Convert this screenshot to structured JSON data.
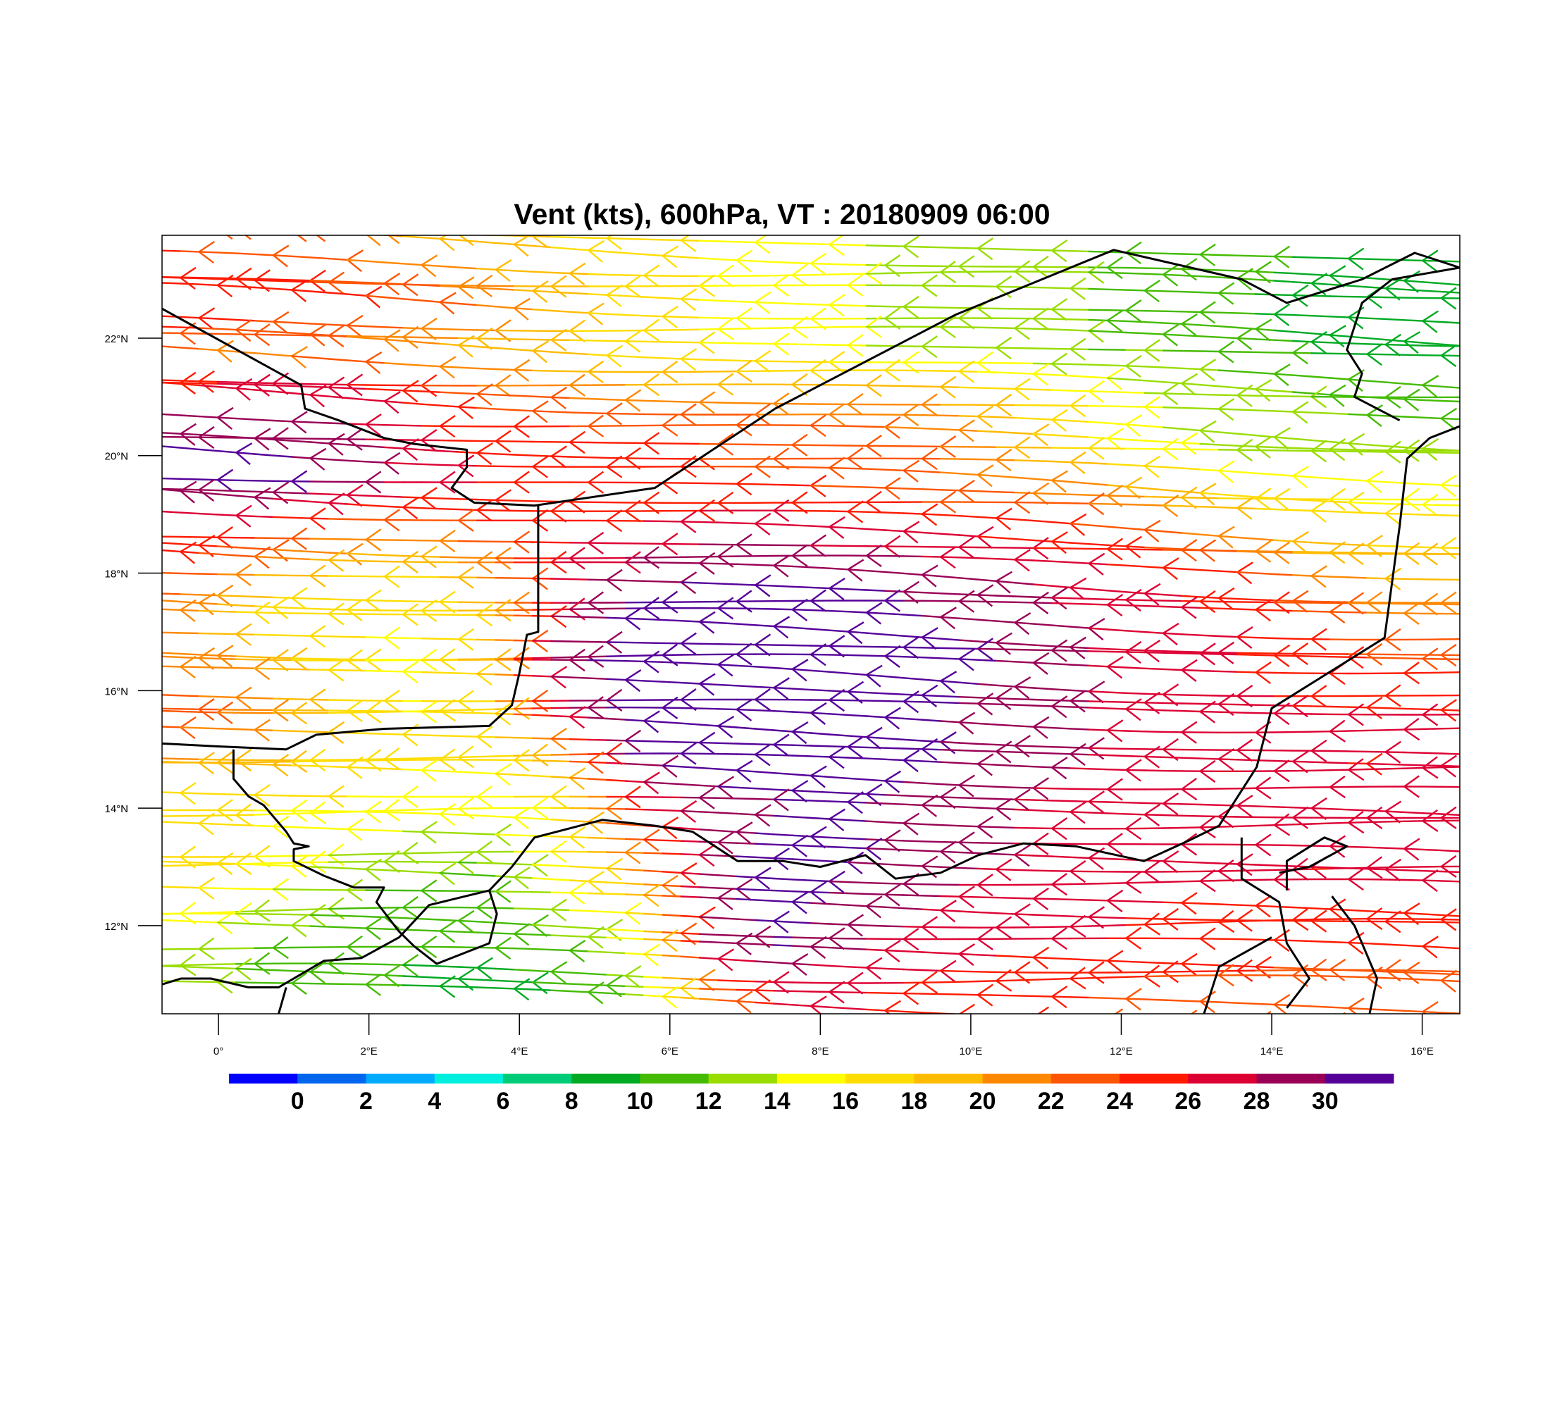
{
  "title": "Vent (kts), 600hPa, VT : 20180909  06:00",
  "map": {
    "lon_range": [
      -0.75,
      16.5
    ],
    "lat_range": [
      10.5,
      23.75
    ],
    "x_tick_labels": [
      {
        "lon": 0,
        "label": "0°"
      },
      {
        "lon": 2,
        "label": "2°E"
      },
      {
        "lon": 4,
        "label": "4°E"
      },
      {
        "lon": 6,
        "label": "6°E"
      },
      {
        "lon": 8,
        "label": "8°E"
      },
      {
        "lon": 10,
        "label": "10°E"
      },
      {
        "lon": 12,
        "label": "12°E"
      },
      {
        "lon": 14,
        "label": "14°E"
      },
      {
        "lon": 16,
        "label": "16°E"
      }
    ],
    "y_tick_labels": [
      {
        "lat": 12,
        "label": "12°N"
      },
      {
        "lat": 14,
        "label": "14°N"
      },
      {
        "lat": 16,
        "label": "16°N"
      },
      {
        "lat": 18,
        "label": "18°N"
      },
      {
        "lat": 20,
        "label": "20°N"
      },
      {
        "lat": 22,
        "label": "22°N"
      }
    ]
  },
  "colorbar": {
    "colors": [
      "#0000ff",
      "#0066ee",
      "#00aaff",
      "#00eedd",
      "#00cc77",
      "#00aa22",
      "#44bb00",
      "#99dd00",
      "#ffff00",
      "#ffdd00",
      "#ffbb00",
      "#ff8800",
      "#ff5500",
      "#ff1a00",
      "#dd0033",
      "#990055",
      "#550099"
    ],
    "labels": [
      "0",
      "2",
      "4",
      "6",
      "8",
      "10",
      "12",
      "14",
      "16",
      "18",
      "20",
      "22",
      "24",
      "26",
      "28",
      "30"
    ]
  },
  "chart_data": {
    "type": "streamline vectors",
    "title": "Vent (kts), 600hPa, VT : 20180909  06:00",
    "units": "kts",
    "level": "600hPa",
    "valid_time": "20180909  06:00",
    "wind_direction": "easterly (flow toward the west)",
    "speed_field_kts": [
      {
        "lat": 23.5,
        "speeds": [
          24,
          23,
          22,
          20,
          19,
          18,
          17,
          16,
          15,
          14,
          13,
          12,
          12,
          11,
          11,
          10,
          10
        ]
      },
      {
        "lat": 22.6,
        "speeds": [
          27,
          26,
          25,
          24,
          22,
          19,
          17,
          16,
          15,
          14,
          13,
          13,
          12,
          11,
          10,
          9,
          8
        ]
      },
      {
        "lat": 21.8,
        "speeds": [
          22,
          21,
          21,
          20,
          19,
          18,
          17,
          16,
          15,
          14,
          14,
          13,
          12,
          12,
          11,
          10,
          9
        ]
      },
      {
        "lat": 21.0,
        "speeds": [
          27,
          29,
          28,
          26,
          23,
          22,
          21,
          21,
          21,
          20,
          20,
          18,
          16,
          14,
          13,
          12,
          11
        ]
      },
      {
        "lat": 20.3,
        "speeds": [
          30,
          30,
          29,
          27,
          25,
          25,
          24,
          24,
          23,
          23,
          22,
          19,
          16,
          14,
          13,
          13,
          12
        ]
      },
      {
        "lat": 19.6,
        "speeds": [
          31,
          31,
          30,
          28,
          26,
          25,
          25,
          24,
          24,
          23,
          22,
          21,
          20,
          18,
          16,
          15,
          14
        ]
      },
      {
        "lat": 18.8,
        "speeds": [
          26,
          25,
          23,
          22,
          24,
          25,
          26,
          27,
          27,
          26,
          26,
          25,
          24,
          22,
          20,
          18,
          17
        ]
      },
      {
        "lat": 18.0,
        "speeds": [
          24,
          20,
          18,
          17,
          20,
          27,
          29,
          30,
          30,
          30,
          29,
          28,
          27,
          26,
          24,
          21,
          19
        ]
      },
      {
        "lat": 17.2,
        "speeds": [
          20,
          17,
          16,
          16,
          18,
          28,
          31,
          31,
          31,
          31,
          30,
          29,
          28,
          27,
          26,
          24,
          22
        ]
      },
      {
        "lat": 16.4,
        "speeds": [
          22,
          20,
          17,
          15,
          19,
          29,
          31,
          31,
          31,
          31,
          31,
          30,
          28,
          27,
          26,
          25,
          24
        ]
      },
      {
        "lat": 15.6,
        "speeds": [
          23,
          21,
          18,
          16,
          16,
          27,
          31,
          31,
          31,
          31,
          30,
          29,
          28,
          27,
          27,
          26,
          26
        ]
      },
      {
        "lat": 14.8,
        "speeds": [
          20,
          19,
          17,
          16,
          16,
          19,
          30,
          31,
          31,
          31,
          30,
          29,
          28,
          27,
          27,
          26,
          26
        ]
      },
      {
        "lat": 14.0,
        "speeds": [
          17,
          16,
          16,
          15,
          15,
          16,
          25,
          29,
          30,
          30,
          29,
          28,
          27,
          27,
          27,
          26,
          26
        ]
      },
      {
        "lat": 13.2,
        "speeds": [
          17,
          16,
          14,
          13,
          12,
          16,
          21,
          29,
          31,
          30,
          29,
          28,
          27,
          27,
          27,
          26,
          26
        ]
      },
      {
        "lat": 12.4,
        "speeds": [
          16,
          14,
          12,
          11,
          11,
          14,
          17,
          29,
          31,
          29,
          28,
          27,
          27,
          26,
          26,
          26,
          26
        ]
      },
      {
        "lat": 11.6,
        "speeds": [
          14,
          12,
          11,
          10,
          10,
          11,
          14,
          28,
          30,
          28,
          27,
          26,
          26,
          25,
          25,
          25,
          25
        ]
      },
      {
        "lat": 10.8,
        "speeds": [
          13,
          11,
          10,
          10,
          9,
          10,
          12,
          21,
          26,
          26,
          25,
          24,
          24,
          23,
          23,
          22,
          22
        ]
      }
    ],
    "speed_field_lons": [
      -0.5,
      0.5,
      1.5,
      2.5,
      3.5,
      4.5,
      5.5,
      6.5,
      7.5,
      8.5,
      9.5,
      10.5,
      11.5,
      12.5,
      13.5,
      14.5,
      15.5
    ]
  }
}
